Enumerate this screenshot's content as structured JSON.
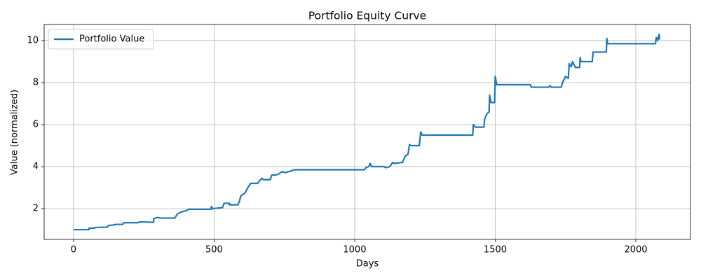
{
  "chart_data": {
    "type": "line",
    "title": "Portfolio Equity Curve",
    "x_label": "Days",
    "y_label": "Value (normalized)",
    "xlim": [
      -104.5,
      2194.5
    ],
    "ylim": [
      0.535,
      10.765
    ],
    "xticks": [
      0,
      500,
      1000,
      1500,
      2000
    ],
    "yticks": [
      2,
      4,
      6,
      8,
      10
    ],
    "grid": true,
    "legend": "upper left",
    "series": [
      {
        "name": "Portfolio Value",
        "color": "#1f77b4",
        "x": [
          0,
          55,
          55,
          75,
          75,
          120,
          125,
          140,
          150,
          175,
          180,
          230,
          235,
          285,
          285,
          300,
          310,
          360,
          370,
          385,
          400,
          410,
          490,
          490,
          495,
          530,
          535,
          555,
          555,
          585,
          590,
          595,
          610,
          620,
          630,
          655,
          660,
          670,
          675,
          700,
          705,
          720,
          730,
          740,
          755,
          775,
          785,
          1035,
          1040,
          1050,
          1055,
          1060,
          1105,
          1110,
          1125,
          1135,
          1140,
          1170,
          1180,
          1190,
          1195,
          1200,
          1230,
          1235,
          1240,
          1420,
          1422,
          1430,
          1460,
          1462,
          1470,
          1478,
          1480,
          1485,
          1498,
          1500,
          1505,
          1625,
          1628,
          1690,
          1695,
          1700,
          1735,
          1738,
          1750,
          1760,
          1763,
          1770,
          1775,
          1785,
          1800,
          1802,
          1805,
          1845,
          1848,
          1895,
          1897,
          1900,
          2070,
          2073,
          2078,
          2083,
          2085
        ],
        "values": [
          1.0,
          1.0,
          1.07,
          1.07,
          1.1,
          1.12,
          1.2,
          1.22,
          1.25,
          1.25,
          1.33,
          1.33,
          1.37,
          1.35,
          1.52,
          1.58,
          1.55,
          1.55,
          1.75,
          1.85,
          1.9,
          1.97,
          1.97,
          2.1,
          2.0,
          2.05,
          2.25,
          2.25,
          2.18,
          2.18,
          2.35,
          2.6,
          2.75,
          3.0,
          3.2,
          3.2,
          3.3,
          3.45,
          3.38,
          3.38,
          3.6,
          3.6,
          3.65,
          3.75,
          3.72,
          3.8,
          3.85,
          3.85,
          3.95,
          4.0,
          4.15,
          4.0,
          4.0,
          3.95,
          4.0,
          4.2,
          4.15,
          4.2,
          4.5,
          4.6,
          5.05,
          5.0,
          5.0,
          5.65,
          5.5,
          5.5,
          6.0,
          5.88,
          5.88,
          6.25,
          6.5,
          6.6,
          7.4,
          7.05,
          7.05,
          8.3,
          7.9,
          7.9,
          7.78,
          7.78,
          7.85,
          7.78,
          7.78,
          7.95,
          8.3,
          8.2,
          8.9,
          8.75,
          9.0,
          8.72,
          8.72,
          9.2,
          9.0,
          9.0,
          9.45,
          9.45,
          10.1,
          9.85,
          9.85,
          10.15,
          10.0,
          10.3,
          10.05
        ]
      }
    ]
  }
}
